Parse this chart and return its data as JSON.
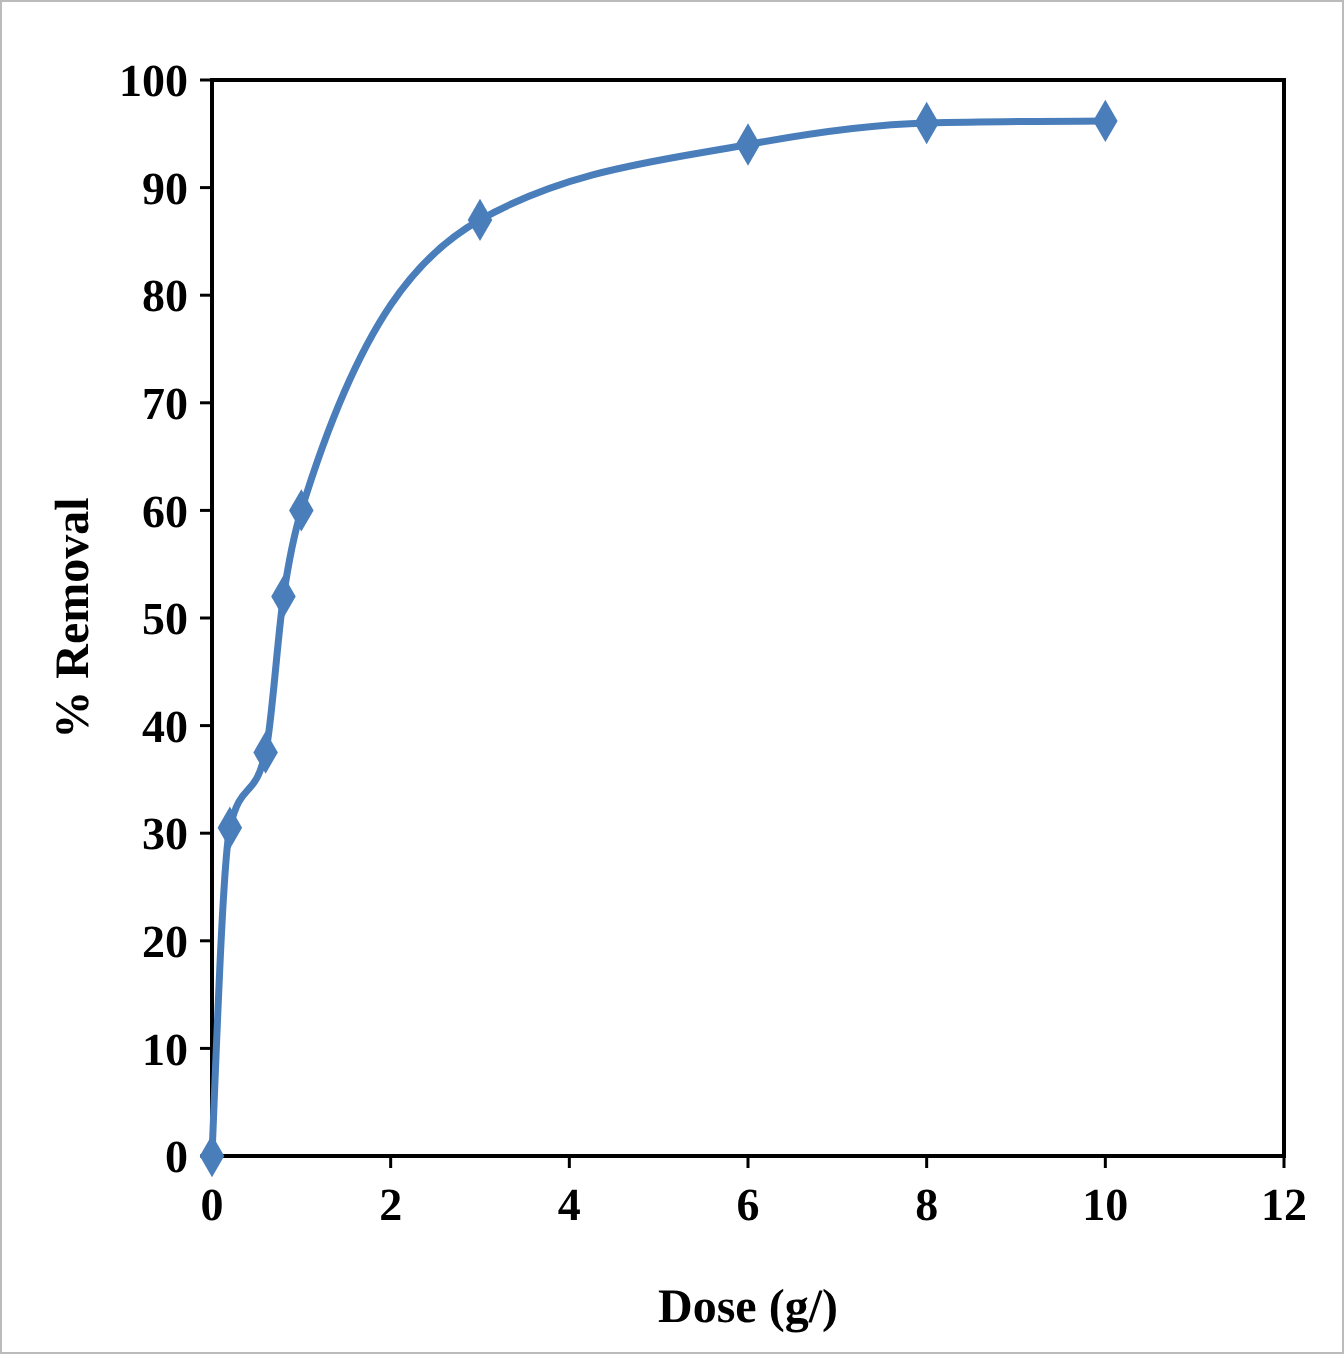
{
  "chart_data": {
    "type": "line",
    "xlabel": "Dose (g/)",
    "ylabel": "% Removal",
    "x": [
      0,
      0.2,
      0.6,
      0.8,
      1,
      3,
      6,
      8,
      10
    ],
    "series": [
      {
        "color": "#4a7ebb",
        "values": [
          0,
          30.5,
          37.5,
          52,
          60,
          87,
          94,
          96,
          96.2
        ]
      }
    ],
    "xlim": [
      0,
      12
    ],
    "xticks": [
      0,
      2,
      4,
      6,
      8,
      10,
      12
    ],
    "ylim": [
      0,
      100
    ],
    "yticks": [
      0,
      10,
      20,
      30,
      40,
      50,
      60,
      70,
      80,
      90,
      100
    ],
    "grid": false,
    "marker": "diamond",
    "line_style": "solid"
  }
}
